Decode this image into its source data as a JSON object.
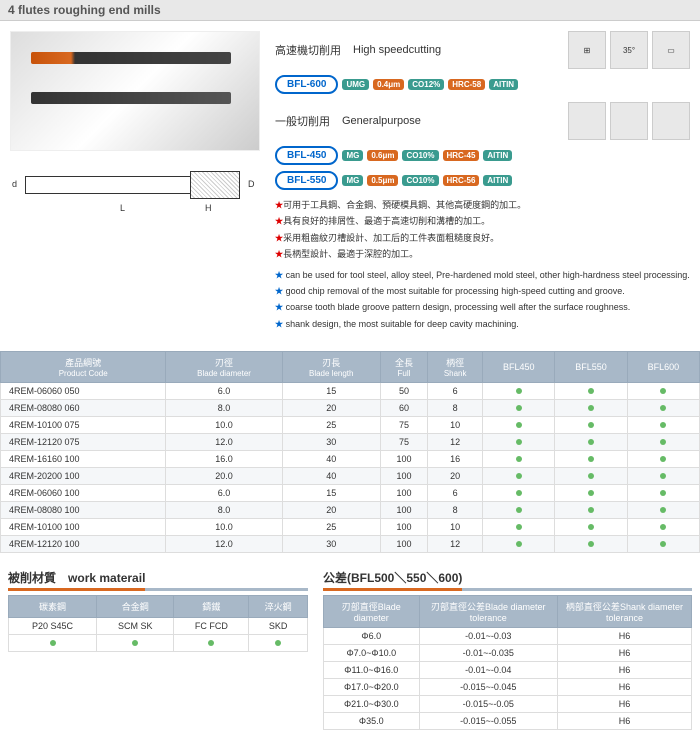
{
  "header": {
    "title": "4 flutes roughing end mills"
  },
  "specs": {
    "highspeed": {
      "cjk": "高速機切削用",
      "en": "High speedcutting",
      "code": "BFL-600",
      "badges": [
        "UMG",
        "0.4μm",
        "CO12%",
        "HRC-58",
        "AITIN"
      ]
    },
    "general": {
      "cjk": "一般切削用",
      "en": "Generalpurpose",
      "rows": [
        {
          "code": "BFL-450",
          "badges": [
            "MG",
            "0.6μm",
            "CO10%",
            "HRC-45",
            "AITIN"
          ]
        },
        {
          "code": "BFL-550",
          "badges": [
            "MG",
            "0.5μm",
            "CO10%",
            "HRC-56",
            "AITIN"
          ]
        }
      ]
    },
    "icons": [
      "⊞",
      "35°",
      "▭"
    ]
  },
  "diagram": {
    "d1": "d",
    "d2": "D",
    "L": "L",
    "H": "H"
  },
  "bullets_cjk": [
    "可用于工具鋼、合金鋼、預硬模具鋼、其他高硬度鋼的加工。",
    "具有良好的排屑性、最適于高速切削和溝槽的加工。",
    "采用粗齒紋刃槽設計、加工后的工件表面粗糙度良好。",
    "長柄型設計、最適于深腔的加工。"
  ],
  "bullets_en": [
    "can be used for tool steel, alloy steel, Pre-hardened mold steel, other high-hardness steel processing.",
    "good chip removal of the most suitable for processing high-speed cutting and groove.",
    "coarse tooth blade groove pattern design, processing well after the surface roughness.",
    "shank design, the most suitable for deep cavity machining."
  ],
  "mainTable": {
    "headers": [
      {
        "cjk": "產品綱號",
        "en": "Product Code"
      },
      {
        "cjk": "刃徑",
        "en": "Blade diameter"
      },
      {
        "cjk": "刃長",
        "en": "Blade length"
      },
      {
        "cjk": "全長",
        "en": "Full"
      },
      {
        "cjk": "柄徑",
        "en": "Shank"
      },
      {
        "cjk": "",
        "en": "BFL450"
      },
      {
        "cjk": "",
        "en": "BFL550"
      },
      {
        "cjk": "",
        "en": "BFL600"
      }
    ],
    "rows": [
      [
        "4REM-06060 050",
        "6.0",
        "15",
        "50",
        "6",
        true,
        true,
        true
      ],
      [
        "4REM-08080 060",
        "8.0",
        "20",
        "60",
        "8",
        true,
        true,
        true
      ],
      [
        "4REM-10100 075",
        "10.0",
        "25",
        "75",
        "10",
        true,
        true,
        true
      ],
      [
        "4REM-12120 075",
        "12.0",
        "30",
        "75",
        "12",
        true,
        true,
        true
      ],
      [
        "4REM-16160 100",
        "16.0",
        "40",
        "100",
        "16",
        true,
        true,
        true
      ],
      [
        "4REM-20200 100",
        "20.0",
        "40",
        "100",
        "20",
        true,
        true,
        true
      ],
      [
        "4REM-06060 100",
        "6.0",
        "15",
        "100",
        "6",
        true,
        true,
        true
      ],
      [
        "4REM-08080 100",
        "8.0",
        "20",
        "100",
        "8",
        true,
        true,
        true
      ],
      [
        "4REM-10100 100",
        "10.0",
        "25",
        "100",
        "10",
        true,
        true,
        true
      ],
      [
        "4REM-12120 100",
        "12.0",
        "30",
        "100",
        "12",
        true,
        true,
        true
      ]
    ]
  },
  "materialTable": {
    "title_cjk": "被削材質",
    "title_en": "work materail",
    "headers": [
      {
        "cjk": "碳素鋼",
        "en": ""
      },
      {
        "cjk": "合金鋼",
        "en": ""
      },
      {
        "cjk": "鑄鐵",
        "en": ""
      },
      {
        "cjk": "淬火鋼",
        "en": ""
      }
    ],
    "row": [
      "P20 S45C",
      "SCM SK",
      "FC FCD",
      "SKD"
    ]
  },
  "toleranceTable": {
    "title_cjk": "公差",
    "title_suffix": "(BFL500＼550＼600)",
    "headers": [
      {
        "cjk": "刃部直徑",
        "en": "Blade diameter"
      },
      {
        "cjk": "刃部直徑公差",
        "en": "Blade diameter tolerance"
      },
      {
        "cjk": "柄部直徑公差",
        "en": "Shank diameter tolerance"
      }
    ],
    "rows": [
      [
        "Φ6.0",
        "-0.01~-0.03",
        "H6"
      ],
      [
        "Φ7.0~Φ10.0",
        "-0.01~-0.035",
        "H6"
      ],
      [
        "Φ11.0~Φ16.0",
        "-0.01~-0.04",
        "H6"
      ],
      [
        "Φ17.0~Φ20.0",
        "-0.015~-0.045",
        "H6"
      ],
      [
        "Φ21.0~Φ30.0",
        "-0.015~-0.05",
        "H6"
      ],
      [
        "Φ35.0",
        "-0.015~-0.055",
        "H6"
      ]
    ]
  }
}
